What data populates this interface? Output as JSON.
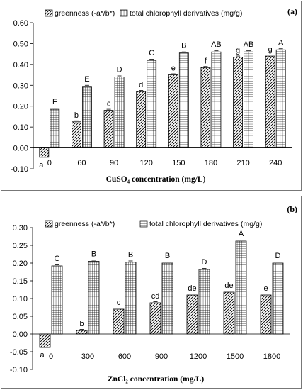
{
  "chart_data": [
    {
      "type": "bar",
      "panel_label": "(a)",
      "categories": [
        "0",
        "60",
        "90",
        "120",
        "150",
        "180",
        "210",
        "240"
      ],
      "xlabel": "CuSO₄ concentration (mg/L)",
      "ylabel": "",
      "ylim": [
        -0.1,
        0.6
      ],
      "yticks": [
        "-0.10",
        "0.00",
        "0.10",
        "0.20",
        "0.30",
        "0.40",
        "0.50",
        "0.60"
      ],
      "legend_position": "top-left",
      "series": [
        {
          "name": "greenness (-a*/b*)",
          "pattern": "diagonal-hatch",
          "values": [
            -0.045,
            0.125,
            0.18,
            0.27,
            0.35,
            0.385,
            0.435,
            0.44
          ],
          "labels": [
            "a",
            "b",
            "c",
            "d",
            "e",
            "f",
            "g",
            "g"
          ]
        },
        {
          "name": "total chlorophyll derivatives (mg/g)",
          "pattern": "grid-hatch",
          "values": [
            0.185,
            0.295,
            0.34,
            0.42,
            0.455,
            0.46,
            0.46,
            0.47
          ],
          "labels": [
            "F",
            "E",
            "D",
            "C",
            "B",
            "AB",
            "AB",
            "A"
          ]
        }
      ]
    },
    {
      "type": "bar",
      "panel_label": "(b)",
      "categories": [
        "0",
        "300",
        "600",
        "900",
        "1200",
        "1500",
        "1800"
      ],
      "xlabel": "ZnCl₂ concentration (mg/L)",
      "ylabel": "",
      "ylim": [
        -0.1,
        0.3
      ],
      "yticks": [
        "-0.10",
        "-0.05",
        "0.00",
        "0.05",
        "0.10",
        "0.15",
        "0.20",
        "0.25",
        "0.30"
      ],
      "legend_position": "top-left",
      "series": [
        {
          "name": "greenness (-a*/b*)",
          "pattern": "diagonal-hatch",
          "values": [
            -0.038,
            0.01,
            0.07,
            0.088,
            0.11,
            0.118,
            0.11
          ],
          "labels": [
            "a",
            "b",
            "c",
            "cd",
            "de",
            "de",
            "e"
          ]
        },
        {
          "name": "total chlorophyll derivatives (mg/g)",
          "pattern": "grid-hatch",
          "values": [
            0.192,
            0.205,
            0.203,
            0.2,
            0.182,
            0.262,
            0.2
          ],
          "labels": [
            "C",
            "B",
            "B",
            "B",
            "D",
            "A",
            "D"
          ]
        }
      ]
    }
  ]
}
